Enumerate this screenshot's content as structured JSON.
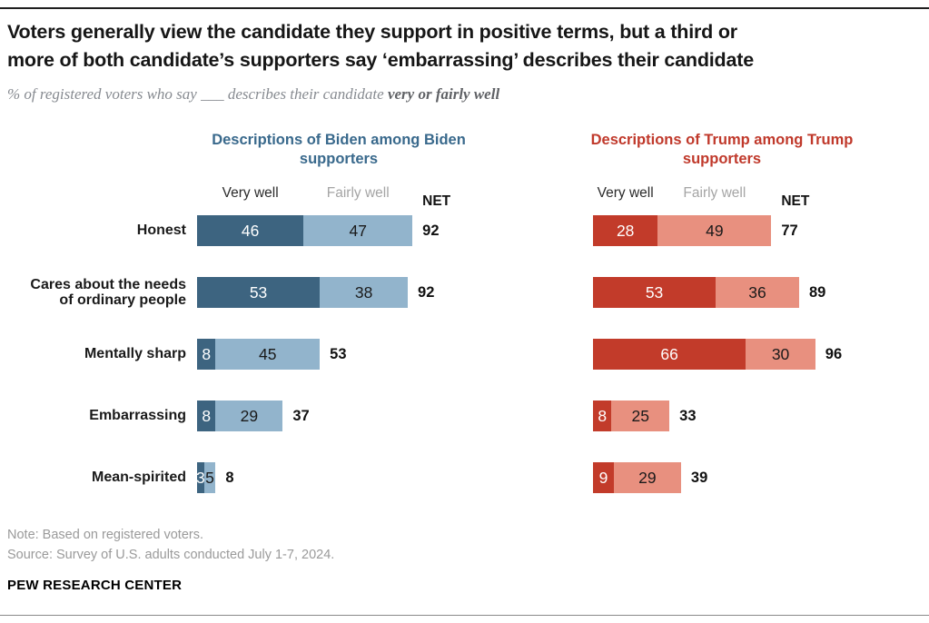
{
  "header": {
    "title_line1": "Voters generally view the candidate they support in positive terms, but a third or",
    "title_line2": "more of both candidate’s supporters say ‘embarrassing’ describes their candidate",
    "subtitle_regular": "% of registered voters who say ___ describes their candidate ",
    "subtitle_bold": "very or fairly well"
  },
  "chart_data": {
    "type": "bar",
    "orientation": "horizontal-stacked",
    "net_label": "NET",
    "categories": [
      "Honest",
      "Cares about the needs of ordinary people",
      "Mentally sharp",
      "Embarrassing",
      "Mean-spirited"
    ],
    "series_label_colors": {
      "very_well": "#2b2b2b",
      "fairly_well": "#a5a5a5"
    },
    "panels": [
      {
        "id": "biden",
        "title": "Descriptions of Biden among Biden supporters",
        "title_color": "#39698C",
        "series": [
          {
            "name": "Very well",
            "color": "#3D6480",
            "label_color": "#ffffff",
            "values": [
              46,
              53,
              8,
              8,
              3
            ]
          },
          {
            "name": "Fairly well",
            "color": "#92B4CC",
            "label_color": "#1a1a1a",
            "values": [
              47,
              38,
              45,
              29,
              5
            ]
          }
        ],
        "net": [
          92,
          92,
          53,
          37,
          8
        ]
      },
      {
        "id": "trump",
        "title": "Descriptions of Trump among Trump supporters",
        "title_color": "#C0392B",
        "series": [
          {
            "name": "Very well",
            "color": "#C23B2A",
            "label_color": "#ffffff",
            "values": [
              28,
              53,
              66,
              8,
              9
            ]
          },
          {
            "name": "Fairly well",
            "color": "#E8907F",
            "label_color": "#1a1a1a",
            "values": [
              49,
              36,
              30,
              25,
              29
            ]
          }
        ],
        "net": [
          77,
          89,
          96,
          33,
          39
        ]
      }
    ]
  },
  "footer": {
    "note": "Note: Based on registered voters.",
    "source": "Source: Survey of U.S. adults conducted July 1-7, 2024.",
    "brand": "PEW RESEARCH CENTER"
  }
}
